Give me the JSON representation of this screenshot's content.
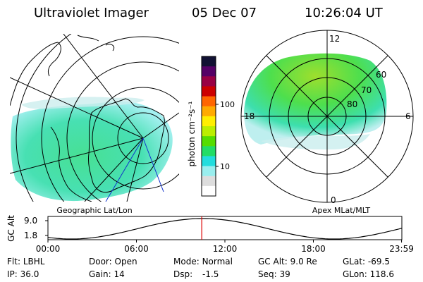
{
  "header": {
    "title": "Ultraviolet Imager",
    "date": "05 Dec 07",
    "time": "10:26:04 UT"
  },
  "colorbar": {
    "unit": "photon cm⁻²s⁻¹",
    "ticks": [
      "100",
      "10"
    ],
    "colors": [
      "#111133",
      "#550066",
      "#990044",
      "#cc0000",
      "#ff6600",
      "#ffaa00",
      "#ffee00",
      "#bbee00",
      "#55dd00",
      "#22dd66",
      "#22dddd",
      "#99eeee",
      "#dddddd",
      "#ffffff"
    ]
  },
  "geo_panel": {
    "label": "Geographic Lat/Lon"
  },
  "polar_panel": {
    "label": "Apex MLat/MLT",
    "mlt_labels": [
      "12",
      "6",
      "0",
      "18"
    ],
    "mlat_labels": [
      "60",
      "70",
      "80"
    ]
  },
  "altitude_plot": {
    "ylabel": "GC Alt",
    "yticks": [
      "9.0",
      "1.8"
    ],
    "xticks": [
      "00:00",
      "06:00",
      "12:00",
      "18:00",
      "23:59"
    ],
    "current_hour": 10.43,
    "marker_color": "#dd0000"
  },
  "info": {
    "flt_label": "Flt:",
    "flt_value": "LBHL",
    "ip_label": "IP:",
    "ip_value": "36.0",
    "door_label": "Door:",
    "door_value": "Open",
    "gain_label": "Gain:",
    "gain_value": "14",
    "mode_label": "Mode:",
    "mode_value": "Normal",
    "dsp_label": "Dsp:",
    "dsp_value": "-1.5",
    "gcalt_label": "GC Alt:",
    "gcalt_value": "9.0 Re",
    "seq_label": "Seq:",
    "seq_value": "39",
    "glat_label": "GLat:",
    "glat_value": "-69.5",
    "glon_label": "GLon:",
    "glon_value": "118.6"
  }
}
